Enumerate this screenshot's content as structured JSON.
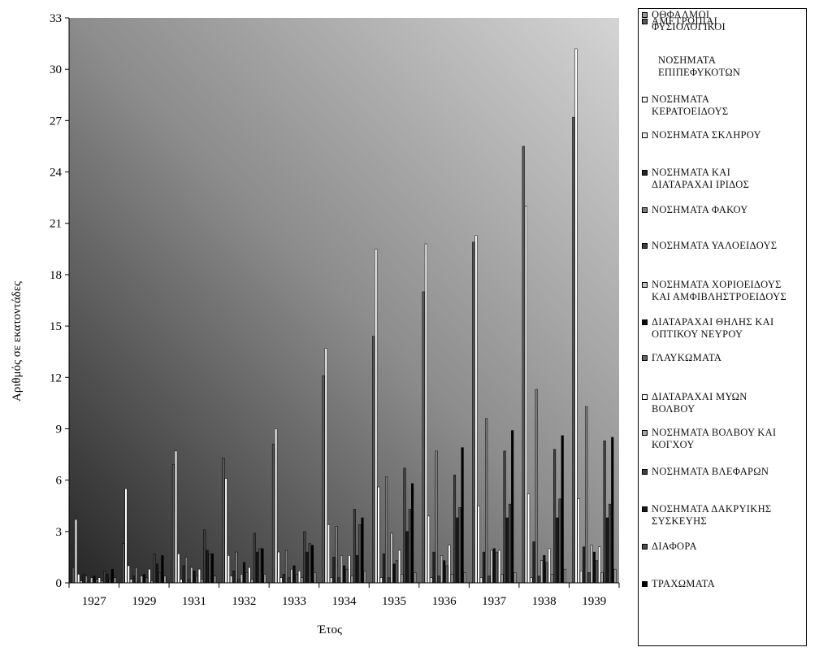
{
  "chart_data": {
    "type": "bar",
    "title": "",
    "xlabel": "Έτος",
    "ylabel": "Αριθμός σε εκατοντάδες",
    "ylim": [
      0,
      33
    ],
    "yticks": [
      0,
      3,
      6,
      9,
      12,
      15,
      18,
      21,
      24,
      27,
      30,
      33
    ],
    "categories": [
      "1927",
      "1929",
      "1931",
      "1932",
      "1933",
      "1934",
      "1935",
      "1936",
      "1937",
      "1938",
      "1939"
    ],
    "series": [
      {
        "name": "ΑΜΕΤΡΩΠΙΑΙ",
        "color": "#595959",
        "values": [
          0.9,
          2.3,
          6.9,
          7.3,
          8.1,
          12.1,
          14.4,
          17.0,
          19.9,
          25.5,
          27.2
        ]
      },
      {
        "name": "ΝΟΣΗΜΑΤΑ\nΕΠΙΠΕΦΥΚΟΤΩΝ",
        "color": "#ffffff",
        "values": [
          3.7,
          5.5,
          7.7,
          6.1,
          9.0,
          13.7,
          19.5,
          19.8,
          20.3,
          22.0,
          31.2
        ]
      },
      {
        "name": "ΝΟΣΗΜΑΤΑ\nΚΕΡΑΤΟΕΙΔΟΥΣ",
        "color": "#ffffff",
        "values": [
          0.5,
          1.0,
          1.7,
          1.6,
          1.8,
          3.4,
          5.6,
          3.9,
          4.5,
          5.2,
          4.9
        ]
      },
      {
        "name": "ΝΟΣΗΜΑΤΑ ΣΚΛΗΡΟΥ",
        "color": "#f2f2f2",
        "values": [
          0.1,
          0.2,
          0.2,
          0.4,
          0.3,
          0.3,
          0.3,
          0.3,
          0.3,
          0.3,
          0.7
        ]
      },
      {
        "name": "ΝΟΣΗΜΑΤΑ ΚΑΙ\nΔΙΑΤΑΡΑΧΑΙ ΙΡΙΔΟΣ",
        "color": "#262626",
        "values": [
          0.5,
          0.4,
          1.0,
          0.7,
          0.5,
          1.5,
          1.7,
          1.8,
          1.8,
          2.4,
          2.1
        ]
      },
      {
        "name": "ΝΟΣΗΜΑΤΑ ΦΑΚΟΥ",
        "color": "#7f7f7f",
        "values": [
          0.4,
          0.9,
          1.5,
          1.8,
          1.9,
          3.3,
          6.2,
          7.7,
          9.6,
          11.3,
          10.3
        ]
      },
      {
        "name": "ΝΟΣΗΜΑΤΑ ΥΑΛΟΕΙΔΟΥΣ",
        "color": "#404040",
        "values": [
          0.1,
          0.1,
          0.2,
          0.2,
          0.3,
          0.3,
          0.3,
          0.4,
          0.4,
          0.4,
          0.6
        ]
      },
      {
        "name": "ΝΟΣΗΜΑΤΑ ΧΟΡΙΟΕΙΔΟΥΣ\nΚΑΙ ΑΜΦΙΒΛΗΣΤΡΟΕΙΔΟΥΣ",
        "color": "#bfbfbf",
        "values": [
          0.3,
          0.4,
          0.9,
          0.5,
          0.8,
          1.6,
          2.9,
          1.6,
          1.9,
          1.3,
          2.2
        ]
      },
      {
        "name": "ΔΙΑΤΑΡΑΧΑΙ ΘΗΛΗΣ ΚΑΙ\nΟΠΤΙΚΟΥ ΝΕΥΡΟΥ",
        "color": "#0d0d0d",
        "values": [
          0.4,
          0.5,
          0.7,
          1.2,
          1.0,
          1.0,
          1.1,
          1.3,
          2.0,
          1.6,
          1.8
        ]
      },
      {
        "name": "ΓΛΑΥΚΩΜΑΤΑ",
        "color": "#666666",
        "values": [
          0.2,
          0.3,
          0.4,
          0.6,
          0.5,
          0.8,
          1.3,
          1.0,
          1.8,
          1.2,
          1.3
        ]
      },
      {
        "name": "ΔΙΑΤΑΡΑΧΑΙ ΜΥΩΝ\nΒΟΛΒΟΥ",
        "color": "#ffffff",
        "values": [
          0.3,
          0.8,
          0.8,
          0.9,
          0.7,
          1.6,
          1.9,
          2.2,
          1.9,
          2.0,
          2.1
        ]
      },
      {
        "name": "ΝΟΣΗΜΑΤΑ ΒΟΛΒΟΥ ΚΑΙ\nΚΟΓΧΟΥ",
        "color": "#a6a6a6",
        "values": [
          0.1,
          0.1,
          0.2,
          0.2,
          0.3,
          0.4,
          0.5,
          0.5,
          0.5,
          0.5,
          0.6
        ]
      },
      {
        "name": "ΝΟΣΗΜΑΤΑ ΒΛΕΦΑΡΩΝ",
        "color": "#404040",
        "values": [
          0.7,
          1.7,
          3.1,
          2.9,
          3.0,
          4.3,
          6.7,
          6.3,
          7.7,
          7.8,
          8.3
        ]
      },
      {
        "name": "ΝΟΣΗΜΑΤΑ ΔΑΚΡΥΙΚΗΣ\nΣΥΣΚΕΥΗΣ",
        "color": "#1a1a1a",
        "values": [
          0.5,
          1.1,
          1.9,
          1.8,
          1.8,
          1.6,
          3.0,
          3.8,
          3.8,
          3.8,
          3.8
        ]
      },
      {
        "name": "ΔΙΑΦΟΡΑ",
        "color": "#4d4d4d",
        "values": [
          0.2,
          0.6,
          1.7,
          2.0,
          2.3,
          3.4,
          4.3,
          4.4,
          4.6,
          4.9,
          4.6
        ]
      },
      {
        "name": "ΤΡΑΧΩΜΑΤΑ",
        "color": "#000000",
        "values": [
          0.8,
          1.6,
          1.7,
          2.0,
          2.2,
          3.8,
          5.8,
          7.9,
          8.9,
          8.6,
          8.5
        ]
      },
      {
        "name": "ΟΘΦΑΛΜΟΙ\nΦΥΣΙΟΛΟΓΙΚΟΙ",
        "color": "#999999",
        "values": [
          0.3,
          0.4,
          0.4,
          0.5,
          0.6,
          0.7,
          0.6,
          0.6,
          0.6,
          0.8,
          0.8
        ]
      }
    ]
  }
}
